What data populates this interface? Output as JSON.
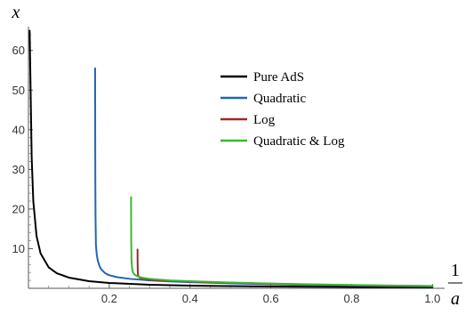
{
  "chart_data": {
    "type": "line",
    "xlabel_numerator": "1",
    "xlabel_denominator": "a",
    "ylabel": "x",
    "xlim": [
      0.0,
      1.03
    ],
    "ylim": [
      0,
      66
    ],
    "xticks": [
      0.2,
      0.4,
      0.6,
      0.8,
      1.0
    ],
    "xtick_labels": [
      "0.2",
      "0.4",
      "0.6",
      "0.8",
      "1.0"
    ],
    "yticks": [
      10,
      20,
      30,
      40,
      50,
      60
    ],
    "ytick_labels": [
      "10",
      "20",
      "30",
      "40",
      "50",
      "60"
    ],
    "legend_position": "top-right",
    "series": [
      {
        "name": "Pure AdS",
        "color": "#000000",
        "x": [
          0.003,
          0.005,
          0.008,
          0.012,
          0.02,
          0.03,
          0.05,
          0.07,
          0.1,
          0.15,
          0.2,
          0.3,
          0.4,
          0.5,
          0.6,
          0.7,
          0.8,
          0.9,
          1.0
        ],
        "y": [
          65,
          52,
          33,
          22,
          13.2,
          8.8,
          5.3,
          3.8,
          2.7,
          1.8,
          1.35,
          0.9,
          0.68,
          0.55,
          0.46,
          0.4,
          0.35,
          0.31,
          0.28
        ]
      },
      {
        "name": "Quadratic",
        "color": "#2166b8",
        "x": [
          0.165,
          0.1652,
          0.1655,
          0.166,
          0.167,
          0.169,
          0.172,
          0.176,
          0.18,
          0.19,
          0.2,
          0.22,
          0.25,
          0.3,
          0.35,
          0.4,
          0.5,
          0.6,
          0.7,
          0.8,
          0.9,
          1.0
        ],
        "y": [
          55.5,
          40,
          28,
          18,
          11,
          8.5,
          6.8,
          5.6,
          4.8,
          3.8,
          3.3,
          2.8,
          2.4,
          2.0,
          1.75,
          1.55,
          1.25,
          1.0,
          0.85,
          0.7,
          0.6,
          0.5
        ]
      },
      {
        "name": "Log",
        "color": "#a32626",
        "x": [
          0.27,
          0.2702,
          0.2705,
          0.271,
          0.273,
          0.277,
          0.285,
          0.3,
          0.35,
          0.4,
          0.5,
          0.6,
          0.7,
          0.8,
          0.9,
          1.0
        ],
        "y": [
          9.8,
          6.5,
          4.5,
          3.5,
          2.9,
          2.6,
          2.4,
          2.2,
          1.9,
          1.7,
          1.4,
          1.15,
          0.95,
          0.8,
          0.65,
          0.55
        ]
      },
      {
        "name": "Quadratic & Log",
        "color": "#3cb82e",
        "x": [
          0.254,
          0.2542,
          0.2545,
          0.255,
          0.256,
          0.258,
          0.262,
          0.27,
          0.28,
          0.3,
          0.35,
          0.4,
          0.5,
          0.6,
          0.7,
          0.8,
          0.9,
          1.0
        ],
        "y": [
          23,
          16,
          11,
          7.5,
          5.5,
          4.2,
          3.5,
          3.0,
          2.7,
          2.4,
          2.0,
          1.8,
          1.45,
          1.2,
          1.0,
          0.85,
          0.7,
          0.6
        ]
      }
    ]
  }
}
